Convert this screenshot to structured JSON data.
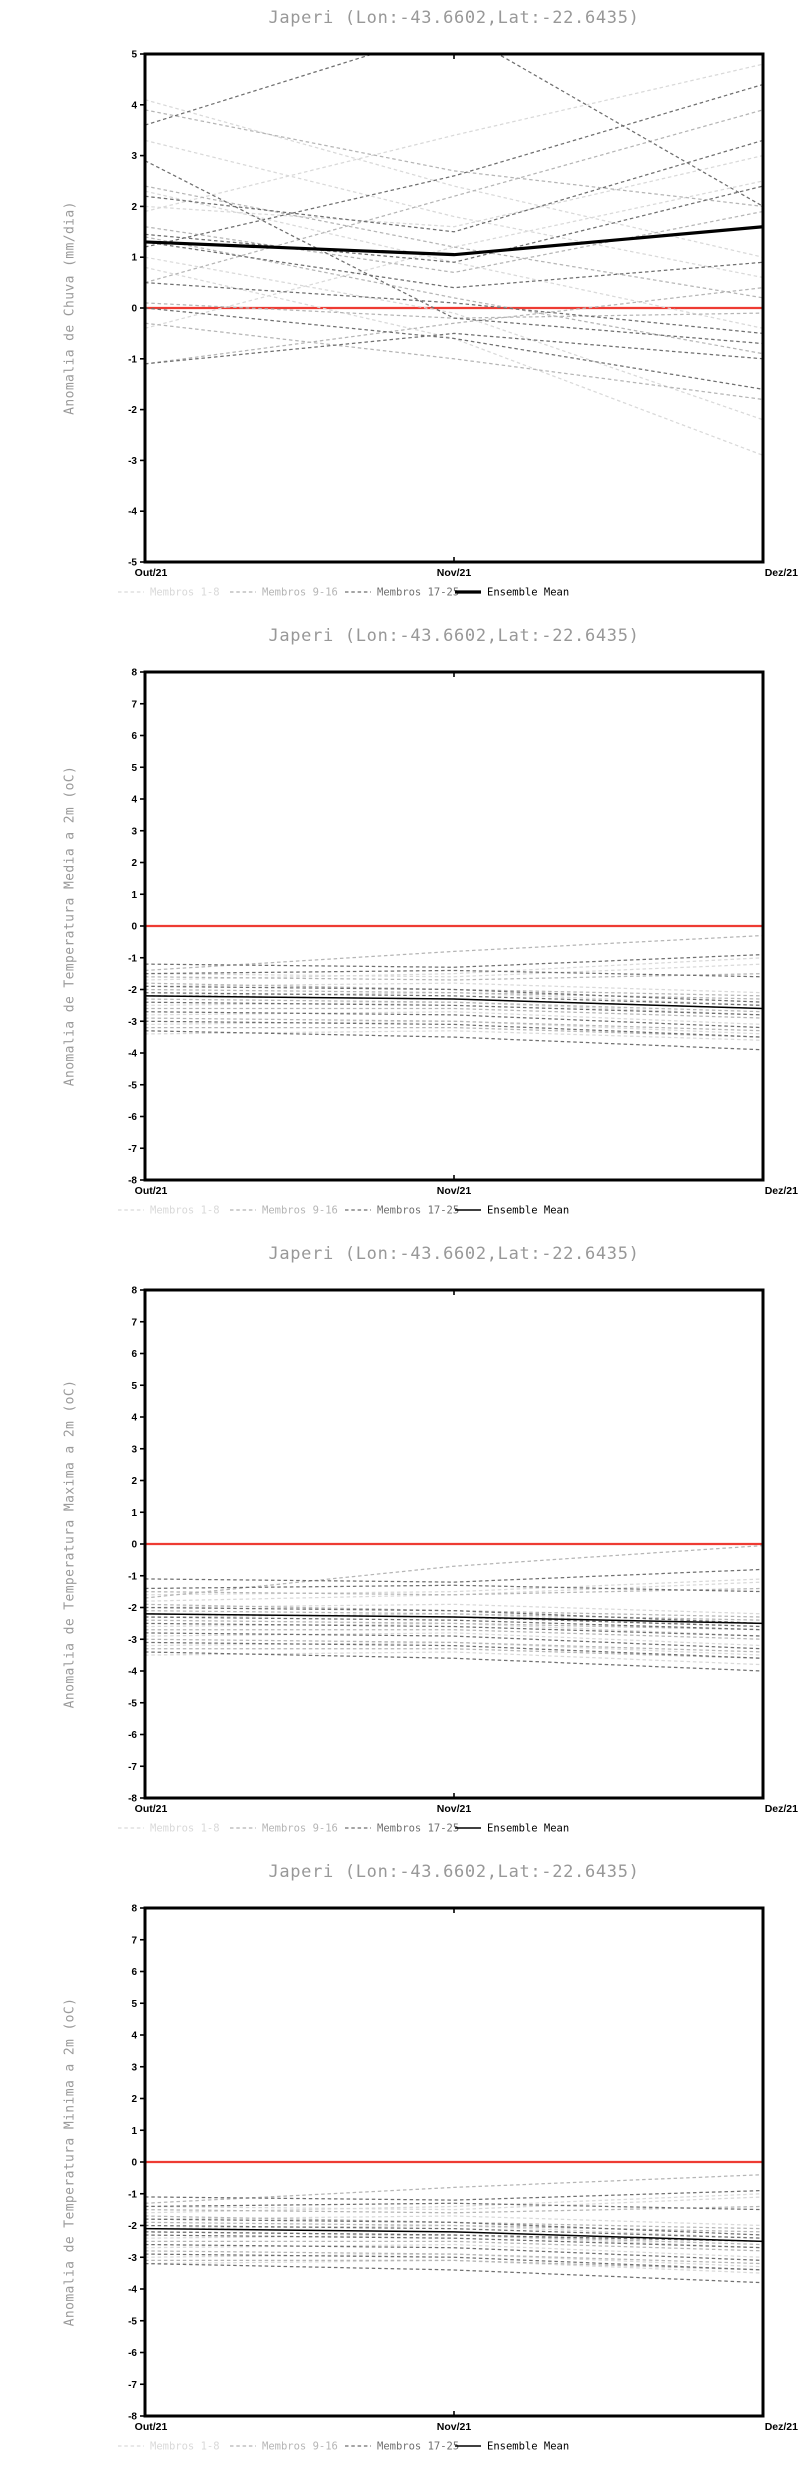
{
  "location": {
    "name": "Japeri",
    "lon": "-43.6602",
    "lat": "-22.6435"
  },
  "colors": {
    "member_groups": {
      "Membros 1-8": "#d9d9d9",
      "Membros 9-16": "#b5b5b5",
      "Membros 17-25": "#6f6f6f"
    },
    "ensemble_mean": "#000000",
    "zero_line": "#ee3b33",
    "axis": "#000000",
    "title_text": "#989898"
  },
  "legend": {
    "items": [
      {
        "label": "Membros 1-8",
        "color": "#d9d9d9",
        "style": "dashed"
      },
      {
        "label": "Membros 9-16",
        "color": "#b5b5b5",
        "style": "dashed"
      },
      {
        "label": "Membros 17-25",
        "color": "#6f6f6f",
        "style": "dashed"
      },
      {
        "label": "Ensemble Mean",
        "color": "#000000",
        "style": "solid"
      }
    ]
  },
  "chart_data": [
    {
      "type": "line",
      "title": "Japeri (Lon:-43.6602,Lat:-22.6435)",
      "ylabel": "Anomalia de Chuva (mm/dia)",
      "xlabel": "",
      "x": [
        "Out/21",
        "Nov/21",
        "Dez/21"
      ],
      "ylim": [
        -5,
        5
      ],
      "ytick_step": 1,
      "grid": false,
      "legend_position": "bottom",
      "zero_line": 0,
      "mean_style": "thick",
      "members": {
        "Membros 1-8": [
          [
            4.1,
            2.4,
            1.0
          ],
          [
            1.9,
            3.4,
            4.8
          ],
          [
            3.3,
            1.8,
            0.6
          ],
          [
            2.3,
            0.9,
            -0.4
          ],
          [
            0.8,
            -0.6,
            -2.9
          ],
          [
            2.0,
            1.6,
            3.0
          ],
          [
            -0.4,
            1.2,
            2.5
          ],
          [
            1.0,
            -0.1,
            -2.2
          ]
        ],
        "Membros 9-16": [
          [
            3.9,
            2.7,
            2.0
          ],
          [
            1.4,
            0.2,
            -0.9
          ],
          [
            0.1,
            -0.2,
            -0.1
          ],
          [
            -1.1,
            -0.3,
            0.4
          ],
          [
            2.4,
            1.2,
            0.2
          ],
          [
            0.5,
            2.2,
            3.9
          ],
          [
            -0.3,
            -1.0,
            -1.8
          ],
          [
            1.6,
            0.7,
            1.9
          ]
        ],
        "Membros 17-25": [
          [
            3.6,
            5.5,
            2.0
          ],
          [
            2.9,
            -0.2,
            -0.7
          ],
          [
            1.45,
            0.9,
            2.4
          ],
          [
            1.3,
            0.4,
            0.9
          ],
          [
            0.5,
            0.1,
            -0.5
          ],
          [
            -1.1,
            -0.5,
            -1.0
          ],
          [
            0.0,
            -0.6,
            -1.6
          ],
          [
            2.2,
            1.5,
            3.3
          ],
          [
            1.2,
            2.6,
            4.4
          ]
        ]
      },
      "ensemble_mean": [
        1.3,
        1.05,
        1.6
      ]
    },
    {
      "type": "line",
      "title": "Japeri (Lon:-43.6602,Lat:-22.6435)",
      "ylabel": "Anomalia de Temperatura Media a 2m (oC)",
      "xlabel": "",
      "x": [
        "Out/21",
        "Nov/21",
        "Dez/21"
      ],
      "ylim": [
        -8,
        8
      ],
      "ytick_step": 1,
      "grid": false,
      "legend_position": "bottom",
      "zero_line": 0,
      "mean_style": "thin",
      "members": {
        "Membros 1-8": [
          [
            -1.5,
            -1.6,
            -1.2
          ],
          [
            -1.9,
            -1.8,
            -2.1
          ],
          [
            -2.2,
            -2.1,
            -2.5
          ],
          [
            -2.5,
            -2.4,
            -2.8
          ],
          [
            -2.8,
            -2.7,
            -3.1
          ],
          [
            -3.1,
            -3.0,
            -3.4
          ],
          [
            -1.7,
            -1.5,
            -1.0
          ],
          [
            -3.4,
            -3.3,
            -3.6
          ]
        ],
        "Membros 9-16": [
          [
            -1.4,
            -0.8,
            -0.3
          ],
          [
            -1.6,
            -1.7,
            -1.5
          ],
          [
            -2.0,
            -2.1,
            -2.3
          ],
          [
            -2.3,
            -2.4,
            -2.7
          ],
          [
            -2.6,
            -2.6,
            -2.9
          ],
          [
            -2.9,
            -3.0,
            -3.3
          ],
          [
            -1.8,
            -2.0,
            -2.2
          ],
          [
            -3.2,
            -3.2,
            -3.5
          ]
        ],
        "Membros 17-25": [
          [
            -1.2,
            -1.3,
            -0.9
          ],
          [
            -1.5,
            -1.4,
            -1.6
          ],
          [
            -1.9,
            -2.0,
            -2.4
          ],
          [
            -2.1,
            -2.2,
            -2.5
          ],
          [
            -2.4,
            -2.5,
            -2.8
          ],
          [
            -2.7,
            -2.8,
            -3.2
          ],
          [
            -3.0,
            -3.1,
            -3.5
          ],
          [
            -2.2,
            -2.3,
            -2.6
          ],
          [
            -3.3,
            -3.5,
            -3.9
          ]
        ]
      },
      "ensemble_mean": [
        -2.2,
        -2.3,
        -2.6
      ]
    },
    {
      "type": "line",
      "title": "Japeri (Lon:-43.6602,Lat:-22.6435)",
      "ylabel": "Anomalia de Temperatura Maxima a 2m (oC)",
      "xlabel": "",
      "x": [
        "Out/21",
        "Nov/21",
        "Dez/21"
      ],
      "ylim": [
        -8,
        8
      ],
      "ytick_step": 1,
      "grid": false,
      "legend_position": "bottom",
      "zero_line": 0,
      "mean_style": "thin",
      "members": {
        "Membros 1-8": [
          [
            -1.6,
            -1.5,
            -1.1
          ],
          [
            -2.0,
            -1.9,
            -2.2
          ],
          [
            -2.3,
            -2.2,
            -2.6
          ],
          [
            -2.6,
            -2.5,
            -2.9
          ],
          [
            -2.9,
            -2.8,
            -3.2
          ],
          [
            -3.2,
            -3.1,
            -3.5
          ],
          [
            -1.8,
            -1.6,
            -1.2
          ],
          [
            -3.5,
            -3.4,
            -3.8
          ]
        ],
        "Membros 9-16": [
          [
            -1.7,
            -0.7,
            -0.05
          ],
          [
            -1.5,
            -1.6,
            -1.4
          ],
          [
            -2.1,
            -2.2,
            -2.4
          ],
          [
            -2.4,
            -2.5,
            -2.7
          ],
          [
            -2.7,
            -2.7,
            -3.0
          ],
          [
            -3.0,
            -3.1,
            -3.4
          ],
          [
            -1.9,
            -2.1,
            -2.3
          ],
          [
            -3.3,
            -3.3,
            -3.6
          ]
        ],
        "Membros 17-25": [
          [
            -1.1,
            -1.2,
            -0.8
          ],
          [
            -1.4,
            -1.3,
            -1.5
          ],
          [
            -2.0,
            -2.1,
            -2.5
          ],
          [
            -2.2,
            -2.3,
            -2.6
          ],
          [
            -2.5,
            -2.6,
            -2.9
          ],
          [
            -2.8,
            -2.9,
            -3.3
          ],
          [
            -3.1,
            -3.2,
            -3.6
          ],
          [
            -2.3,
            -2.4,
            -2.7
          ],
          [
            -3.4,
            -3.6,
            -4.0
          ]
        ]
      },
      "ensemble_mean": [
        -2.2,
        -2.3,
        -2.5
      ]
    },
    {
      "type": "line",
      "title": "Japeri (Lon:-43.6602,Lat:-22.6435)",
      "ylabel": "Anomalia de Temperatura Minima a 2m (oC)",
      "xlabel": "",
      "x": [
        "Out/21",
        "Nov/21",
        "Dez/21"
      ],
      "ylim": [
        -8,
        8
      ],
      "ytick_step": 1,
      "grid": false,
      "legend_position": "bottom",
      "zero_line": 0,
      "mean_style": "thin",
      "members": {
        "Membros 1-8": [
          [
            -1.4,
            -1.5,
            -1.1
          ],
          [
            -1.8,
            -1.7,
            -2.0
          ],
          [
            -2.1,
            -2.0,
            -2.4
          ],
          [
            -2.4,
            -2.3,
            -2.7
          ],
          [
            -2.7,
            -2.6,
            -3.0
          ],
          [
            -3.0,
            -2.9,
            -3.3
          ],
          [
            -1.6,
            -1.4,
            -1.0
          ],
          [
            -3.2,
            -3.1,
            -3.5
          ]
        ],
        "Membros 9-16": [
          [
            -1.3,
            -0.8,
            -0.4
          ],
          [
            -1.5,
            -1.6,
            -1.4
          ],
          [
            -1.9,
            -2.0,
            -2.2
          ],
          [
            -2.2,
            -2.3,
            -2.6
          ],
          [
            -2.5,
            -2.5,
            -2.8
          ],
          [
            -2.8,
            -2.9,
            -3.2
          ],
          [
            -1.7,
            -1.9,
            -2.1
          ],
          [
            -3.1,
            -3.1,
            -3.4
          ]
        ],
        "Membros 17-25": [
          [
            -1.1,
            -1.2,
            -0.9
          ],
          [
            -1.4,
            -1.3,
            -1.5
          ],
          [
            -1.8,
            -1.9,
            -2.3
          ],
          [
            -2.0,
            -2.1,
            -2.4
          ],
          [
            -2.3,
            -2.4,
            -2.7
          ],
          [
            -2.6,
            -2.7,
            -3.1
          ],
          [
            -2.9,
            -3.0,
            -3.4
          ],
          [
            -2.2,
            -2.3,
            -2.5
          ],
          [
            -3.2,
            -3.4,
            -3.8
          ]
        ]
      },
      "ensemble_mean": [
        -2.1,
        -2.2,
        -2.5
      ]
    }
  ]
}
